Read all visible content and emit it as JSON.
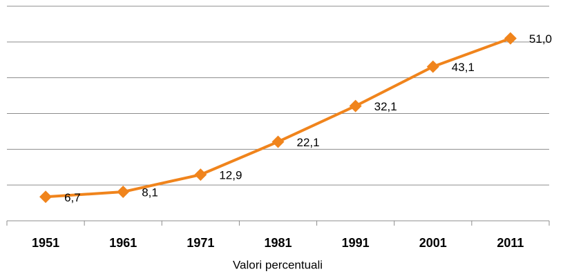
{
  "chart_data": {
    "type": "line",
    "x_label": "Valori percentuali",
    "categories": [
      "1951",
      "1961",
      "1971",
      "1981",
      "1991",
      "2001",
      "2011"
    ],
    "series": [
      {
        "color": "#f0841c",
        "values": [
          6.7,
          8.1,
          12.9,
          22.1,
          32.1,
          43.1,
          51.0
        ],
        "value_labels": [
          "6,7",
          "8,1",
          "12,9",
          "22,1",
          "32,1",
          "43,1",
          "51,0"
        ]
      }
    ],
    "ylim": [
      0,
      60
    ],
    "yticks": [
      0,
      10,
      20,
      30,
      40,
      50,
      60
    ],
    "grid": true
  }
}
